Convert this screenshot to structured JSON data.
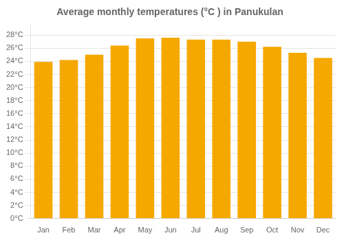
{
  "chart_data": {
    "type": "bar",
    "title": "Average monthly temperatures (°C ) in Panukulan",
    "categories": [
      "Jan",
      "Feb",
      "Mar",
      "Apr",
      "May",
      "Jun",
      "Jul",
      "Aug",
      "Sep",
      "Oct",
      "Nov",
      "Dec"
    ],
    "values": [
      23.9,
      24.2,
      25.0,
      26.4,
      27.5,
      27.6,
      27.3,
      27.3,
      27.0,
      26.2,
      25.3,
      24.5
    ],
    "color": "#F5A800",
    "ylim": [
      0,
      29.5
    ],
    "yticks": [
      {
        "value": 0,
        "label": "0°C"
      },
      {
        "value": 2,
        "label": "2°C"
      },
      {
        "value": 4,
        "label": "4°C"
      },
      {
        "value": 6,
        "label": "6°C"
      },
      {
        "value": 8,
        "label": "8°C"
      },
      {
        "value": 10,
        "label": "10°C"
      },
      {
        "value": 12,
        "label": "12°C"
      },
      {
        "value": 14,
        "label": "14°C"
      },
      {
        "value": 16,
        "label": "16°C"
      },
      {
        "value": 18,
        "label": "18°C"
      },
      {
        "value": 20,
        "label": "20°C"
      },
      {
        "value": 22,
        "label": "22°C"
      },
      {
        "value": 24,
        "label": "24°C"
      },
      {
        "value": 26,
        "label": "26°C"
      },
      {
        "value": 28,
        "label": "28°C"
      }
    ],
    "grid": true
  }
}
